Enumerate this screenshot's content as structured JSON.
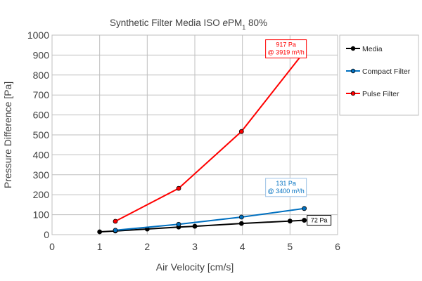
{
  "chart_data": {
    "type": "line",
    "title": "Synthetic Filter Media ISO ePM",
    "title_subscript": "1",
    "title_suffix": " 80%",
    "xlabel": "Air Velocity [cm/s]",
    "ylabel": "Pressure Difference [Pa]",
    "xlim": [
      0,
      6
    ],
    "ylim": [
      0,
      1000
    ],
    "x_ticks": [
      "0",
      "1",
      "2",
      "3",
      "4",
      "5",
      "6"
    ],
    "y_ticks": [
      "0",
      "100",
      "200",
      "300",
      "400",
      "500",
      "600",
      "700",
      "800",
      "900",
      "1000"
    ],
    "grid": true,
    "legend_position": "right",
    "series": [
      {
        "name": "Media",
        "color": "#000000",
        "x": [
          1.0,
          1.33,
          2.0,
          2.66,
          3.0,
          3.98,
          5.0,
          5.3
        ],
        "y": [
          14,
          18,
          28,
          38,
          42,
          56,
          68,
          72
        ]
      },
      {
        "name": "Compact Filter",
        "color": "#0070C0",
        "x": [
          1.33,
          2.66,
          3.98,
          5.3
        ],
        "y": [
          22,
          52,
          88,
          131
        ]
      },
      {
        "name": "Pulse Filter",
        "color": "#FF0000",
        "x": [
          1.33,
          2.66,
          3.98,
          5.3
        ],
        "y": [
          67,
          232,
          517,
          917
        ]
      }
    ],
    "annotations": [
      {
        "series": "Pulse Filter",
        "lines": [
          "917 Pa",
          "@ 3919 m³/h"
        ],
        "x": 5.3,
        "y": 917,
        "color": "#FF0000",
        "border": "#FF0000"
      },
      {
        "series": "Compact Filter",
        "lines": [
          "131 Pa",
          "@ 3400 m³/h"
        ],
        "x": 5.3,
        "y": 131,
        "color": "#0070C0",
        "border": "#9DC3E6"
      },
      {
        "series": "Media",
        "lines": [
          "72 Pa"
        ],
        "x": 5.3,
        "y": 72,
        "color": "#000000",
        "border": "#000000"
      }
    ]
  }
}
